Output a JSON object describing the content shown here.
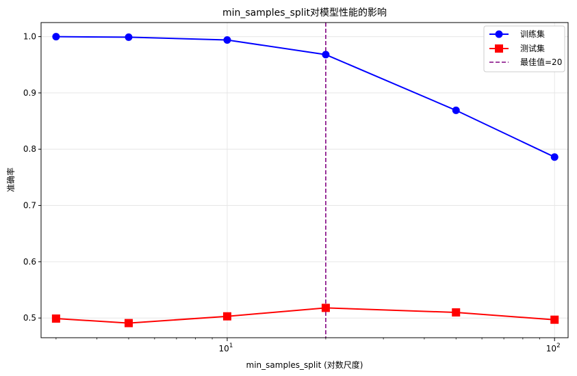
{
  "chart_data": {
    "type": "line",
    "title": "min_samples_split对模型性能的影响",
    "xlabel": "min_samples_split (对数尺度)",
    "ylabel": "准确率",
    "xscale": "log",
    "xlim": [
      2.7,
      110
    ],
    "ylim": [
      0.465,
      1.025
    ],
    "x": [
      3,
      5,
      10,
      20,
      50,
      100
    ],
    "yticks": [
      0.5,
      0.6,
      0.7,
      0.8,
      0.9,
      1.0
    ],
    "ytick_labels": [
      "0.5",
      "0.6",
      "0.7",
      "0.8",
      "0.9",
      "1.0"
    ],
    "xticks": [
      10,
      100
    ],
    "xtick_labels": [
      {
        "base": "10",
        "exp": "1"
      },
      {
        "base": "10",
        "exp": "2"
      }
    ],
    "grid": true,
    "legend_position": "top-right",
    "series": [
      {
        "name": "训练集",
        "color": "#0000ff",
        "marker": "circle",
        "values": [
          1.0,
          0.999,
          0.994,
          0.968,
          0.869,
          0.786
        ]
      },
      {
        "name": "测试集",
        "color": "#ff0000",
        "marker": "square",
        "values": [
          0.499,
          0.491,
          0.503,
          0.518,
          0.51,
          0.497
        ]
      }
    ],
    "vline": {
      "x": 20,
      "label": "最佳值=20",
      "color": "#800080",
      "style": "dashed"
    }
  }
}
